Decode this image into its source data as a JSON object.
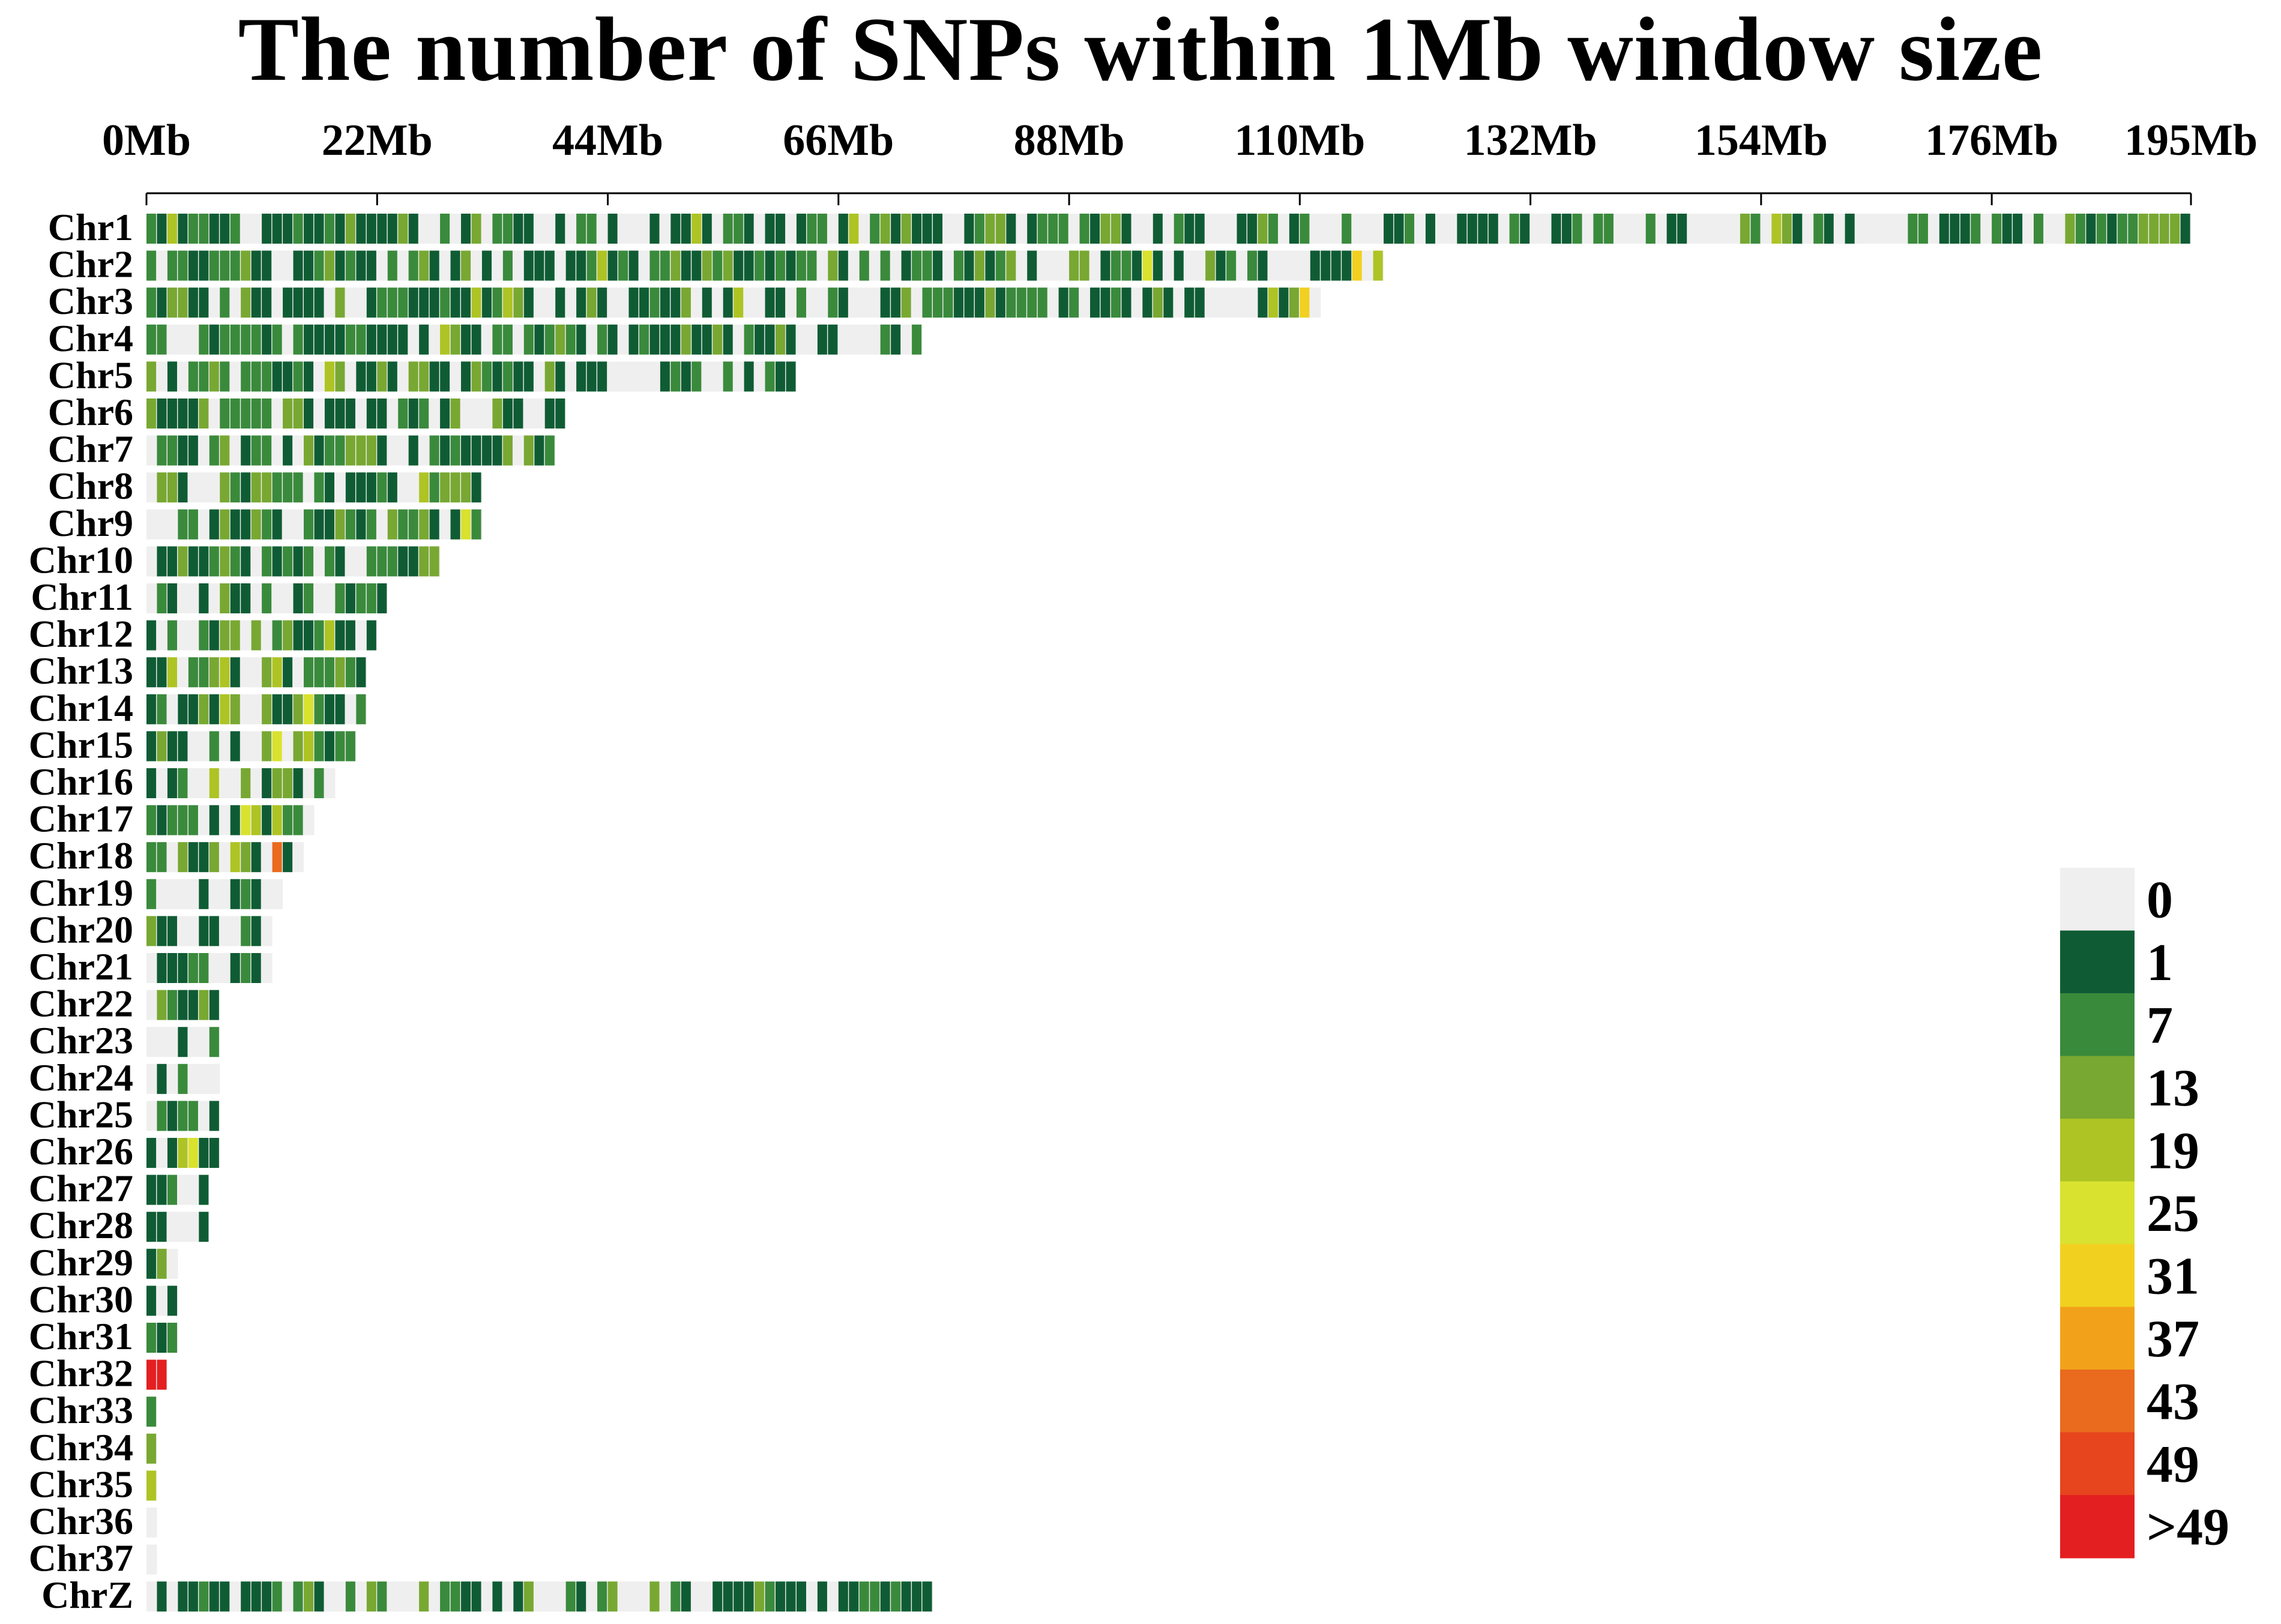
{
  "chart_data": {
    "type": "heatmap",
    "title": "The number of SNPs within 1Mb window size",
    "xlabel": "",
    "ylabel": "",
    "x_unit": "Mb",
    "xlim": [
      0,
      195
    ],
    "x_ticks": [
      {
        "value": 0,
        "label": "0Mb"
      },
      {
        "value": 22,
        "label": "22Mb"
      },
      {
        "value": 44,
        "label": "44Mb"
      },
      {
        "value": 66,
        "label": "66Mb"
      },
      {
        "value": 88,
        "label": "88Mb"
      },
      {
        "value": 110,
        "label": "110Mb"
      },
      {
        "value": 132,
        "label": "132Mb"
      },
      {
        "value": 154,
        "label": "154Mb"
      },
      {
        "value": 176,
        "label": "176Mb"
      },
      {
        "value": 195,
        "label": "195Mb"
      }
    ],
    "legend": {
      "placement": "bottom-right",
      "bins": [
        {
          "label": "0",
          "color": "#efefef"
        },
        {
          "label": "1",
          "color": "#0f5c34"
        },
        {
          "label": "7",
          "color": "#3a8a3c"
        },
        {
          "label": "13",
          "color": "#78a832"
        },
        {
          "label": "19",
          "color": "#aec424"
        },
        {
          "label": "25",
          "color": "#d9e22e"
        },
        {
          "label": "31",
          "color": "#f2d020"
        },
        {
          "label": "37",
          "color": "#f2a21a"
        },
        {
          "label": "43",
          "color": "#ea6a1e"
        },
        {
          "label": "49",
          "color": "#e6451e"
        },
        {
          "label": ">49",
          "color": "#e41f21"
        }
      ]
    },
    "chromosomes": [
      {
        "name": "Chr1",
        "length_mb": 195,
        "highlights": [
          [
            0,
            2
          ],
          [
            119,
            1
          ],
          [
            194,
            1
          ]
        ]
      },
      {
        "name": "Chr2",
        "length_mb": 118,
        "highlights": [
          [
            26,
            3
          ],
          [
            43,
            4
          ],
          [
            95,
            5
          ],
          [
            115,
            6
          ]
        ]
      },
      {
        "name": "Chr3",
        "length_mb": 112,
        "highlights": [
          [
            110,
            6
          ]
        ]
      },
      {
        "name": "Chr4",
        "length_mb": 74,
        "highlights": []
      },
      {
        "name": "Chr5",
        "length_mb": 62,
        "highlights": [
          [
            26,
            3
          ]
        ]
      },
      {
        "name": "Chr6",
        "length_mb": 40,
        "highlights": []
      },
      {
        "name": "Chr7",
        "length_mb": 39,
        "highlights": [
          [
            15,
            3
          ]
        ]
      },
      {
        "name": "Chr8",
        "length_mb": 32,
        "highlights": [
          [
            10,
            3
          ]
        ]
      },
      {
        "name": "Chr9",
        "length_mb": 32,
        "highlights": [
          [
            30,
            5
          ]
        ]
      },
      {
        "name": "Chr10",
        "length_mb": 28,
        "highlights": []
      },
      {
        "name": "Chr11",
        "length_mb": 23,
        "highlights": []
      },
      {
        "name": "Chr12",
        "length_mb": 22,
        "highlights": [
          [
            10,
            3
          ]
        ]
      },
      {
        "name": "Chr13",
        "length_mb": 21,
        "highlights": [
          [
            12,
            4
          ]
        ]
      },
      {
        "name": "Chr14",
        "length_mb": 21,
        "highlights": [
          [
            15,
            5
          ]
        ]
      },
      {
        "name": "Chr15",
        "length_mb": 20,
        "highlights": [
          [
            12,
            5
          ]
        ]
      },
      {
        "name": "Chr16",
        "length_mb": 18,
        "highlights": [
          [
            6,
            4
          ]
        ]
      },
      {
        "name": "Chr17",
        "length_mb": 16,
        "highlights": [
          [
            9,
            5
          ]
        ]
      },
      {
        "name": "Chr18",
        "length_mb": 15,
        "highlights": [
          [
            12,
            8
          ]
        ]
      },
      {
        "name": "Chr19",
        "length_mb": 13,
        "highlights": []
      },
      {
        "name": "Chr20",
        "length_mb": 12,
        "highlights": []
      },
      {
        "name": "Chr21",
        "length_mb": 12,
        "highlights": []
      },
      {
        "name": "Chr22",
        "length_mb": 7,
        "highlights": []
      },
      {
        "name": "Chr23",
        "length_mb": 7,
        "highlights": []
      },
      {
        "name": "Chr24",
        "length_mb": 7,
        "highlights": []
      },
      {
        "name": "Chr25",
        "length_mb": 7,
        "highlights": []
      },
      {
        "name": "Chr26",
        "length_mb": 7,
        "highlights": [
          [
            4,
            5
          ]
        ]
      },
      {
        "name": "Chr27",
        "length_mb": 6,
        "highlights": []
      },
      {
        "name": "Chr28",
        "length_mb": 6,
        "highlights": []
      },
      {
        "name": "Chr29",
        "length_mb": 3,
        "highlights": []
      },
      {
        "name": "Chr30",
        "length_mb": 3,
        "highlights": []
      },
      {
        "name": "Chr31",
        "length_mb": 3,
        "highlights": []
      },
      {
        "name": "Chr32",
        "length_mb": 2,
        "highlights": [
          [
            0,
            10
          ],
          [
            1,
            10
          ]
        ]
      },
      {
        "name": "Chr33",
        "length_mb": 1,
        "highlights": []
      },
      {
        "name": "Chr34",
        "length_mb": 1,
        "highlights": []
      },
      {
        "name": "Chr35",
        "length_mb": 1,
        "highlights": []
      },
      {
        "name": "Chr36",
        "length_mb": 1,
        "highlights": []
      },
      {
        "name": "Chr37",
        "length_mb": 1,
        "highlights": []
      },
      {
        "name": "ChrZ",
        "length_mb": 75,
        "highlights": []
      }
    ]
  }
}
